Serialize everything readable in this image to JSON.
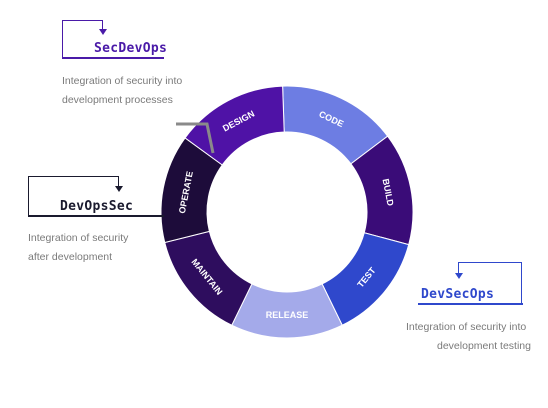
{
  "diagram": {
    "segments": [
      {
        "label": "CODE",
        "color": "#6d7de3"
      },
      {
        "label": "BUILD",
        "color": "#3a0c78"
      },
      {
        "label": "TEST",
        "color": "#2f48cc"
      },
      {
        "label": "RELEASE",
        "color": "#a4aaea"
      },
      {
        "label": "MAINTAIN",
        "color": "#2e0d5e"
      },
      {
        "label": "OPERATE",
        "color": "#1d0c3a"
      },
      {
        "label": "DESIGN",
        "color": "#4f12a6"
      }
    ]
  },
  "callouts": {
    "secdevops": {
      "title": "SecDevOps",
      "desc_line1": "Integration of security into",
      "desc_line2": "development processes",
      "title_color": "#4a1aa8"
    },
    "devopssec": {
      "title": "DevOpsSec",
      "desc_line1": "Integration of security",
      "desc_line2": "after development",
      "title_color": "#1a1a2e"
    },
    "devsecops": {
      "title": "DevSecOps",
      "desc_line1": "Integration of security into",
      "desc_line2": "development testing",
      "title_color": "#2f48cc"
    }
  }
}
